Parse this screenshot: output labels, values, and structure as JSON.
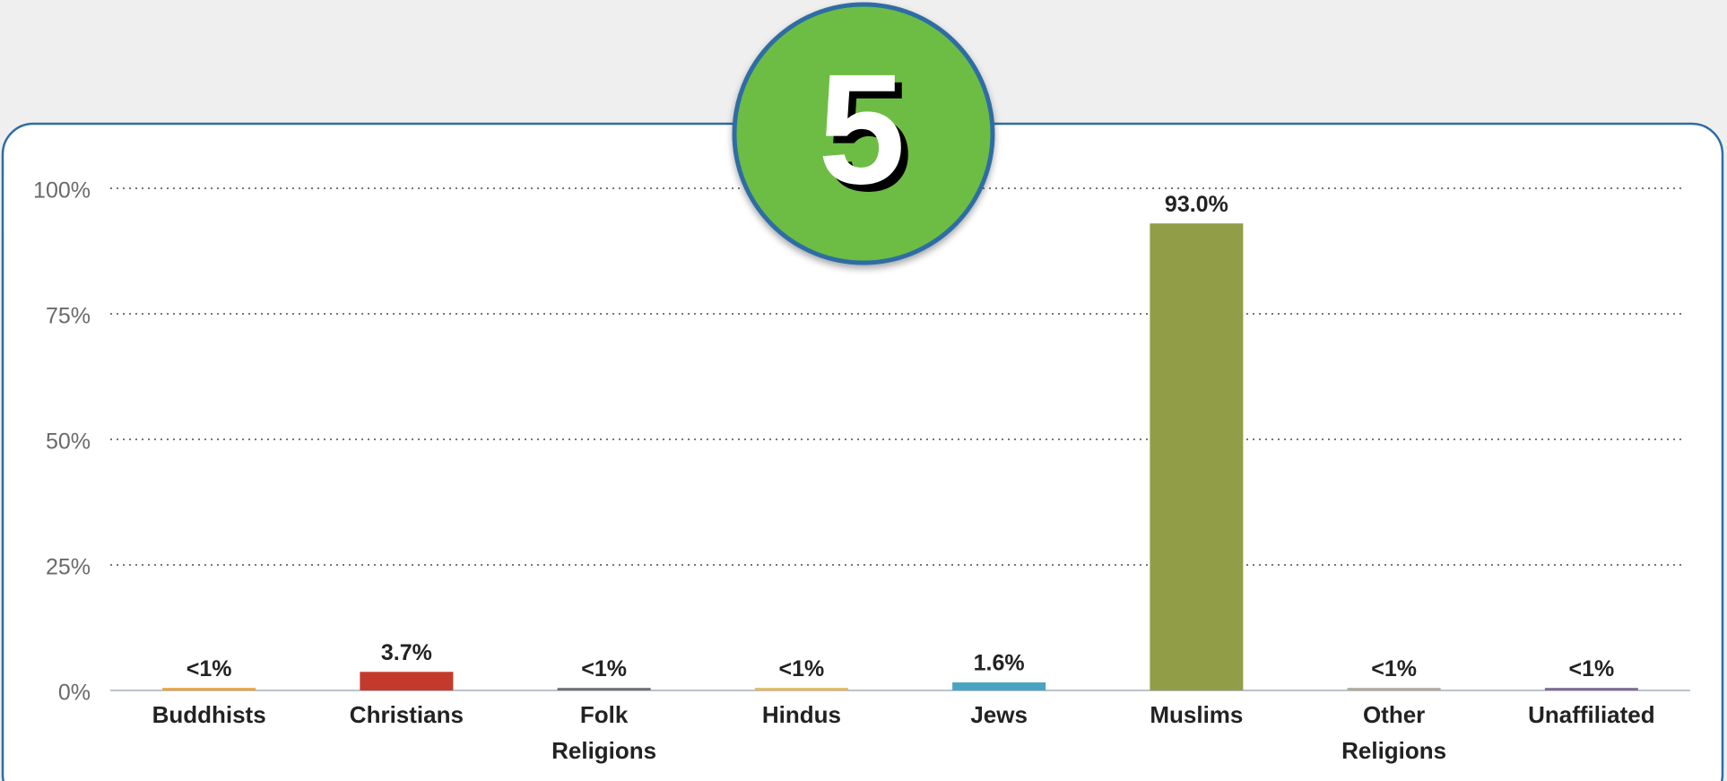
{
  "badge": "5",
  "chart_data": {
    "type": "bar",
    "categories": [
      "Buddhists",
      "Christians",
      "Folk Religions",
      "Hindus",
      "Jews",
      "Muslims",
      "Other Religions",
      "Unaffiliated"
    ],
    "values": [
      0.5,
      3.7,
      0.5,
      0.5,
      1.6,
      93.0,
      0.5,
      0.5
    ],
    "value_labels": [
      "<1%",
      "3.7%",
      "<1%",
      "<1%",
      "1.6%",
      "93.0%",
      "<1%",
      "<1%"
    ],
    "colors": [
      "#e8a33d",
      "#c33a2c",
      "#6d6e70",
      "#e2b95a",
      "#4ba3c3",
      "#929d48",
      "#b0a89a",
      "#7d6b94"
    ],
    "ylim": [
      0,
      100
    ],
    "yticks": [
      {
        "value": 0,
        "label": "0%"
      },
      {
        "value": 25,
        "label": "25%"
      },
      {
        "value": 50,
        "label": "50%"
      },
      {
        "value": 75,
        "label": "75%"
      },
      {
        "value": 100,
        "label": "100%"
      }
    ],
    "grid": true
  }
}
